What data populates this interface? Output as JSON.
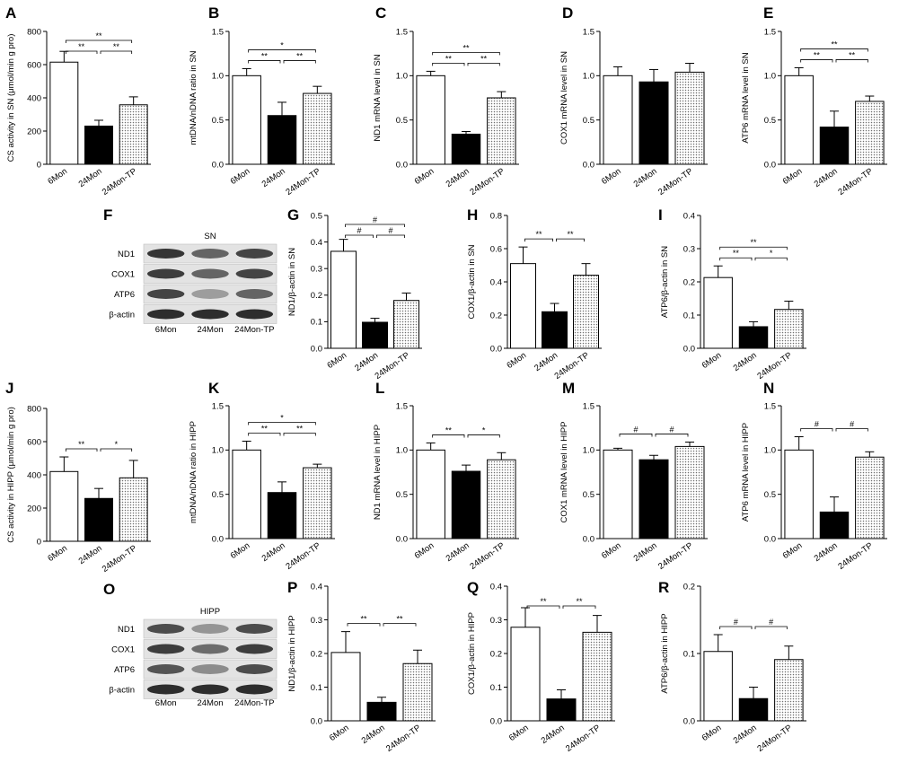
{
  "categories": [
    "6Mon",
    "24Mon",
    "24Mon-TP"
  ],
  "colors": {
    "fill_6mon": "#ffffff",
    "fill_24mon": "#000000",
    "fill_tp_dots": "#6e6e6e",
    "stroke": "#000000"
  },
  "chart_data": [
    {
      "letter": "A",
      "type": "bar",
      "ylabel": "CS activity in SN (μmol/min g pro)",
      "ylim": [
        0,
        800
      ],
      "yticks": [
        0,
        200,
        400,
        600,
        800
      ],
      "ytick_labels": [
        "0",
        "200",
        "400",
        "600",
        "800"
      ],
      "values": [
        615,
        230,
        358
      ],
      "errors": [
        65,
        35,
        48
      ],
      "sig": [
        {
          "from": 0,
          "to": 1,
          "label": "**"
        },
        {
          "from": 1,
          "to": 2,
          "label": "**"
        },
        {
          "from": 0,
          "to": 2,
          "label": "**"
        }
      ]
    },
    {
      "letter": "B",
      "type": "bar",
      "ylabel": "mtDNA/nDNA ratio in SN",
      "ylim": [
        0,
        1.5
      ],
      "yticks": [
        0,
        0.5,
        1.0,
        1.5
      ],
      "ytick_labels": [
        "0.0",
        "0.5",
        "1.0",
        "1.5"
      ],
      "values": [
        1.0,
        0.55,
        0.8
      ],
      "errors": [
        0.08,
        0.15,
        0.08
      ],
      "sig": [
        {
          "from": 0,
          "to": 1,
          "label": "**"
        },
        {
          "from": 1,
          "to": 2,
          "label": "**"
        },
        {
          "from": 0,
          "to": 2,
          "label": "*"
        }
      ]
    },
    {
      "letter": "C",
      "type": "bar",
      "ylabel": "ND1 mRNA level in SN",
      "ylim": [
        0,
        1.5
      ],
      "yticks": [
        0,
        0.5,
        1.0,
        1.5
      ],
      "ytick_labels": [
        "0.0",
        "0.5",
        "1.0",
        "1.5"
      ],
      "values": [
        1.0,
        0.34,
        0.75
      ],
      "errors": [
        0.05,
        0.03,
        0.07
      ],
      "sig": [
        {
          "from": 0,
          "to": 1,
          "label": "**"
        },
        {
          "from": 1,
          "to": 2,
          "label": "**"
        },
        {
          "from": 0,
          "to": 2,
          "label": "**"
        }
      ]
    },
    {
      "letter": "D",
      "type": "bar",
      "ylabel": "COX1 mRNA level in SN",
      "ylim": [
        0,
        1.5
      ],
      "yticks": [
        0,
        0.5,
        1.0,
        1.5
      ],
      "ytick_labels": [
        "0.0",
        "0.5",
        "1.0",
        "1.5"
      ],
      "values": [
        1.0,
        0.93,
        1.04
      ],
      "errors": [
        0.1,
        0.14,
        0.1
      ],
      "sig": []
    },
    {
      "letter": "E",
      "type": "bar",
      "ylabel": "ATP6 mRNA level in SN",
      "ylim": [
        0,
        1.5
      ],
      "yticks": [
        0,
        0.5,
        1.0,
        1.5
      ],
      "ytick_labels": [
        "0.0",
        "0.5",
        "1.0",
        "1.5"
      ],
      "values": [
        1.0,
        0.42,
        0.71
      ],
      "errors": [
        0.09,
        0.18,
        0.06
      ],
      "sig": [
        {
          "from": 0,
          "to": 1,
          "label": "**"
        },
        {
          "from": 1,
          "to": 2,
          "label": "**"
        },
        {
          "from": 0,
          "to": 2,
          "label": "**"
        }
      ]
    },
    {
      "letter": "G",
      "type": "bar",
      "ylabel": "ND1/β-actin in SN",
      "ylim": [
        0,
        0.5
      ],
      "yticks": [
        0,
        0.1,
        0.2,
        0.3,
        0.4,
        0.5
      ],
      "ytick_labels": [
        "0.0",
        "0.1",
        "0.2",
        "0.3",
        "0.4",
        "0.5"
      ],
      "values": [
        0.365,
        0.098,
        0.18
      ],
      "errors": [
        0.045,
        0.015,
        0.028
      ],
      "sig": [
        {
          "from": 0,
          "to": 1,
          "label": "#"
        },
        {
          "from": 1,
          "to": 2,
          "label": "#"
        },
        {
          "from": 0,
          "to": 2,
          "label": "#"
        }
      ]
    },
    {
      "letter": "H",
      "type": "bar",
      "ylabel": "COX1/β-actin in SN",
      "ylim": [
        0,
        0.8
      ],
      "yticks": [
        0,
        0.2,
        0.4,
        0.6,
        0.8
      ],
      "ytick_labels": [
        "0.0",
        "0.2",
        "0.4",
        "0.6",
        "0.8"
      ],
      "values": [
        0.51,
        0.22,
        0.44
      ],
      "errors": [
        0.1,
        0.05,
        0.07
      ],
      "sig": [
        {
          "from": 0,
          "to": 1,
          "label": "**"
        },
        {
          "from": 1,
          "to": 2,
          "label": "**"
        }
      ]
    },
    {
      "letter": "I",
      "type": "bar",
      "ylabel": "ATP6/β-actin in SN",
      "ylim": [
        0,
        0.4
      ],
      "yticks": [
        0,
        0.1,
        0.2,
        0.3,
        0.4
      ],
      "ytick_labels": [
        "0.0",
        "0.1",
        "0.2",
        "0.3",
        "0.4"
      ],
      "values": [
        0.213,
        0.065,
        0.117
      ],
      "errors": [
        0.035,
        0.015,
        0.025
      ],
      "sig": [
        {
          "from": 0,
          "to": 1,
          "label": "**"
        },
        {
          "from": 1,
          "to": 2,
          "label": "*"
        },
        {
          "from": 0,
          "to": 2,
          "label": "**"
        }
      ]
    },
    {
      "letter": "J",
      "type": "bar",
      "ylabel": "CS activity in HIPP (μmol/min g pro)",
      "ylim": [
        0,
        800
      ],
      "yticks": [
        0,
        200,
        400,
        600,
        800
      ],
      "ytick_labels": [
        "0",
        "200",
        "400",
        "600",
        "800"
      ],
      "values": [
        420,
        258,
        382
      ],
      "errors": [
        88,
        60,
        105
      ],
      "sig": [
        {
          "from": 0,
          "to": 1,
          "label": "**"
        },
        {
          "from": 1,
          "to": 2,
          "label": "*"
        }
      ]
    },
    {
      "letter": "K",
      "type": "bar",
      "ylabel": "mtDNA/nDNA ratio in HIPP",
      "ylim": [
        0,
        1.5
      ],
      "yticks": [
        0,
        0.5,
        1.0,
        1.5
      ],
      "ytick_labels": [
        "0.0",
        "0.5",
        "1.0",
        "1.5"
      ],
      "values": [
        1.0,
        0.52,
        0.8
      ],
      "errors": [
        0.1,
        0.12,
        0.04
      ],
      "sig": [
        {
          "from": 0,
          "to": 1,
          "label": "**"
        },
        {
          "from": 1,
          "to": 2,
          "label": "**"
        },
        {
          "from": 0,
          "to": 2,
          "label": "*"
        }
      ]
    },
    {
      "letter": "L",
      "type": "bar",
      "ylabel": "ND1 mRNA level in HIPP",
      "ylim": [
        0,
        1.5
      ],
      "yticks": [
        0,
        0.5,
        1.0,
        1.5
      ],
      "ytick_labels": [
        "0.0",
        "0.5",
        "1.0",
        "1.5"
      ],
      "values": [
        1.0,
        0.76,
        0.89
      ],
      "errors": [
        0.08,
        0.07,
        0.08
      ],
      "sig": [
        {
          "from": 0,
          "to": 1,
          "label": "**"
        },
        {
          "from": 1,
          "to": 2,
          "label": "*"
        }
      ]
    },
    {
      "letter": "M",
      "type": "bar",
      "ylabel": "COX1 mRNA level in HIPP",
      "ylim": [
        0,
        1.5
      ],
      "yticks": [
        0,
        0.5,
        1.0,
        1.5
      ],
      "ytick_labels": [
        "0.0",
        "0.5",
        "1.0",
        "1.5"
      ],
      "values": [
        1.0,
        0.89,
        1.04
      ],
      "errors": [
        0.02,
        0.05,
        0.05
      ],
      "sig": [
        {
          "from": 0,
          "to": 1,
          "label": "#"
        },
        {
          "from": 1,
          "to": 2,
          "label": "#"
        }
      ]
    },
    {
      "letter": "N",
      "type": "bar",
      "ylabel": "ATP6 mRNA level in HIPP",
      "ylim": [
        0,
        1.5
      ],
      "yticks": [
        0,
        0.5,
        1.0,
        1.5
      ],
      "ytick_labels": [
        "0.0",
        "0.5",
        "1.0",
        "1.5"
      ],
      "values": [
        1.0,
        0.3,
        0.92
      ],
      "errors": [
        0.15,
        0.17,
        0.06
      ],
      "sig": [
        {
          "from": 0,
          "to": 1,
          "label": "#"
        },
        {
          "from": 1,
          "to": 2,
          "label": "#"
        }
      ]
    },
    {
      "letter": "P",
      "type": "bar",
      "ylabel": "ND1/β-actin in HIPP",
      "ylim": [
        0,
        0.4
      ],
      "yticks": [
        0,
        0.1,
        0.2,
        0.3,
        0.4
      ],
      "ytick_labels": [
        "0.0",
        "0.1",
        "0.2",
        "0.3",
        "0.4"
      ],
      "values": [
        0.203,
        0.055,
        0.17
      ],
      "errors": [
        0.062,
        0.015,
        0.04
      ],
      "sig": [
        {
          "from": 0,
          "to": 1,
          "label": "**"
        },
        {
          "from": 1,
          "to": 2,
          "label": "**"
        }
      ]
    },
    {
      "letter": "Q",
      "type": "bar",
      "ylabel": "COX1/β-actin in HIPP",
      "ylim": [
        0,
        0.4
      ],
      "yticks": [
        0,
        0.1,
        0.2,
        0.3,
        0.4
      ],
      "ytick_labels": [
        "0.0",
        "0.1",
        "0.2",
        "0.3",
        "0.4"
      ],
      "values": [
        0.278,
        0.065,
        0.263
      ],
      "errors": [
        0.058,
        0.027,
        0.05
      ],
      "sig": [
        {
          "from": 0,
          "to": 1,
          "label": "**"
        },
        {
          "from": 1,
          "to": 2,
          "label": "**"
        }
      ]
    },
    {
      "letter": "R",
      "type": "bar",
      "ylabel": "ATP6/β-actin in HIPP",
      "ylim": [
        0,
        0.2
      ],
      "yticks": [
        0,
        0.1,
        0.2
      ],
      "ytick_labels": [
        "0.0",
        "0.1",
        "0.2"
      ],
      "values": [
        0.103,
        0.033,
        0.091
      ],
      "errors": [
        0.025,
        0.017,
        0.02
      ],
      "sig": [
        {
          "from": 0,
          "to": 1,
          "label": "#"
        },
        {
          "from": 1,
          "to": 2,
          "label": "#"
        }
      ]
    }
  ],
  "blots": [
    {
      "letter": "F",
      "region": "SN",
      "proteins": [
        "ND1",
        "COX1",
        "ATP6",
        "β-actin"
      ],
      "lanes": [
        "6Mon",
        "24Mon",
        "24Mon-TP"
      ],
      "band_intensity": [
        [
          0.9,
          0.6,
          0.8
        ],
        [
          0.85,
          0.6,
          0.8
        ],
        [
          0.8,
          0.25,
          0.6
        ],
        [
          0.95,
          0.95,
          0.95
        ]
      ]
    },
    {
      "letter": "O",
      "region": "HIPP",
      "proteins": [
        "ND1",
        "COX1",
        "ATP6",
        "β-actin"
      ],
      "lanes": [
        "6Mon",
        "24Mon",
        "24Mon-TP"
      ],
      "band_intensity": [
        [
          0.75,
          0.3,
          0.75
        ],
        [
          0.85,
          0.55,
          0.85
        ],
        [
          0.7,
          0.35,
          0.75
        ],
        [
          0.95,
          0.95,
          0.95
        ]
      ]
    }
  ]
}
